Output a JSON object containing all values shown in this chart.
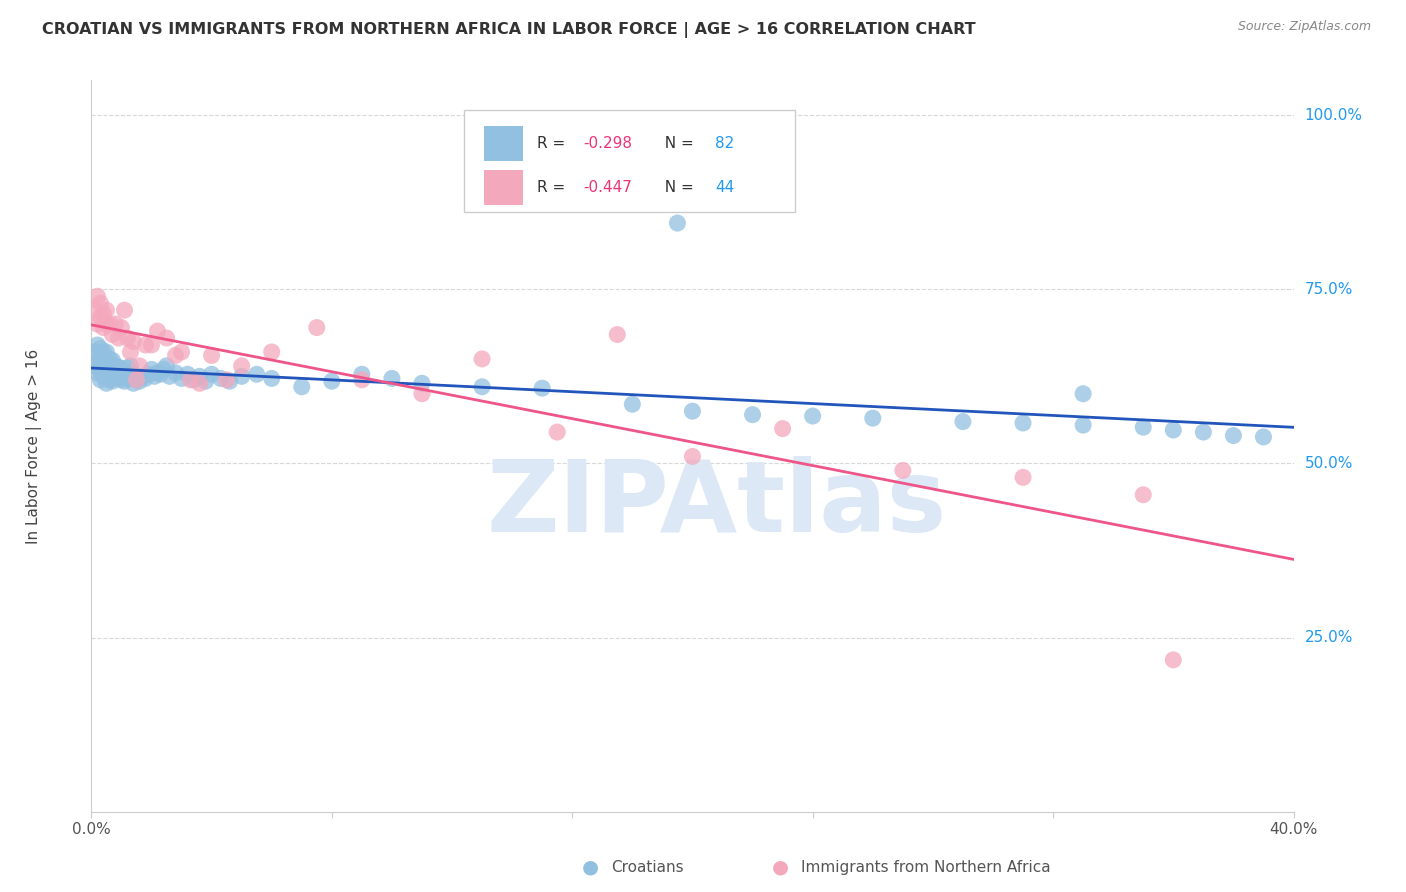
{
  "title": "CROATIAN VS IMMIGRANTS FROM NORTHERN AFRICA IN LABOR FORCE | AGE > 16 CORRELATION CHART",
  "source": "Source: ZipAtlas.com",
  "ylabel": "In Labor Force | Age > 16",
  "xlim": [
    0.0,
    0.4
  ],
  "ylim": [
    0.0,
    1.05
  ],
  "ytick_labels_right": [
    "100.0%",
    "75.0%",
    "50.0%",
    "25.0%"
  ],
  "ytick_values_right": [
    1.0,
    0.75,
    0.5,
    0.25
  ],
  "background_color": "#ffffff",
  "grid_color": "#d8d8d8",
  "watermark": "ZIPAtlas",
  "blue_color": "#92C0E0",
  "pink_color": "#F4A8BC",
  "blue_line_color": "#2255BB",
  "pink_line_color": "#EE5588",
  "legend_blue_label": "Croatians",
  "legend_pink_label": "Immigrants from Northern Africa",
  "R_blue": -0.298,
  "N_blue": 82,
  "R_pink": -0.447,
  "N_pink": 44,
  "blue_x": [
    0.001,
    0.001,
    0.002,
    0.002,
    0.002,
    0.003,
    0.003,
    0.003,
    0.003,
    0.004,
    0.004,
    0.004,
    0.005,
    0.005,
    0.005,
    0.005,
    0.006,
    0.006,
    0.006,
    0.007,
    0.007,
    0.007,
    0.008,
    0.008,
    0.009,
    0.009,
    0.01,
    0.01,
    0.011,
    0.011,
    0.012,
    0.012,
    0.013,
    0.013,
    0.014,
    0.014,
    0.015,
    0.016,
    0.017,
    0.018,
    0.019,
    0.02,
    0.021,
    0.022,
    0.023,
    0.024,
    0.025,
    0.026,
    0.028,
    0.03,
    0.032,
    0.034,
    0.036,
    0.038,
    0.04,
    0.043,
    0.046,
    0.05,
    0.055,
    0.06,
    0.07,
    0.08,
    0.09,
    0.1,
    0.11,
    0.13,
    0.15,
    0.18,
    0.2,
    0.22,
    0.24,
    0.26,
    0.29,
    0.31,
    0.33,
    0.35,
    0.36,
    0.37,
    0.38,
    0.39,
    0.195,
    0.33
  ],
  "blue_y": [
    0.64,
    0.66,
    0.63,
    0.65,
    0.67,
    0.62,
    0.635,
    0.65,
    0.665,
    0.625,
    0.64,
    0.66,
    0.615,
    0.63,
    0.645,
    0.66,
    0.62,
    0.635,
    0.65,
    0.618,
    0.632,
    0.648,
    0.625,
    0.64,
    0.622,
    0.638,
    0.62,
    0.636,
    0.618,
    0.633,
    0.622,
    0.637,
    0.625,
    0.64,
    0.628,
    0.615,
    0.62,
    0.618,
    0.625,
    0.622,
    0.628,
    0.635,
    0.625,
    0.63,
    0.628,
    0.635,
    0.64,
    0.625,
    0.63,
    0.622,
    0.628,
    0.62,
    0.625,
    0.618,
    0.628,
    0.622,
    0.618,
    0.625,
    0.628,
    0.622,
    0.61,
    0.618,
    0.628,
    0.622,
    0.615,
    0.61,
    0.608,
    0.585,
    0.575,
    0.57,
    0.568,
    0.565,
    0.56,
    0.558,
    0.555,
    0.552,
    0.548,
    0.545,
    0.54,
    0.538,
    0.845,
    0.6
  ],
  "pink_x": [
    0.001,
    0.002,
    0.002,
    0.003,
    0.003,
    0.004,
    0.004,
    0.005,
    0.005,
    0.006,
    0.007,
    0.008,
    0.009,
    0.01,
    0.011,
    0.012,
    0.013,
    0.014,
    0.015,
    0.016,
    0.018,
    0.02,
    0.022,
    0.025,
    0.028,
    0.03,
    0.033,
    0.036,
    0.04,
    0.045,
    0.05,
    0.06,
    0.075,
    0.09,
    0.11,
    0.13,
    0.155,
    0.175,
    0.2,
    0.23,
    0.27,
    0.31,
    0.35,
    0.36
  ],
  "pink_y": [
    0.72,
    0.7,
    0.74,
    0.71,
    0.73,
    0.695,
    0.715,
    0.7,
    0.72,
    0.7,
    0.685,
    0.7,
    0.68,
    0.695,
    0.72,
    0.68,
    0.66,
    0.675,
    0.62,
    0.64,
    0.67,
    0.67,
    0.69,
    0.68,
    0.655,
    0.66,
    0.62,
    0.615,
    0.655,
    0.62,
    0.64,
    0.66,
    0.695,
    0.62,
    0.6,
    0.65,
    0.545,
    0.685,
    0.51,
    0.55,
    0.49,
    0.48,
    0.455,
    0.218
  ]
}
